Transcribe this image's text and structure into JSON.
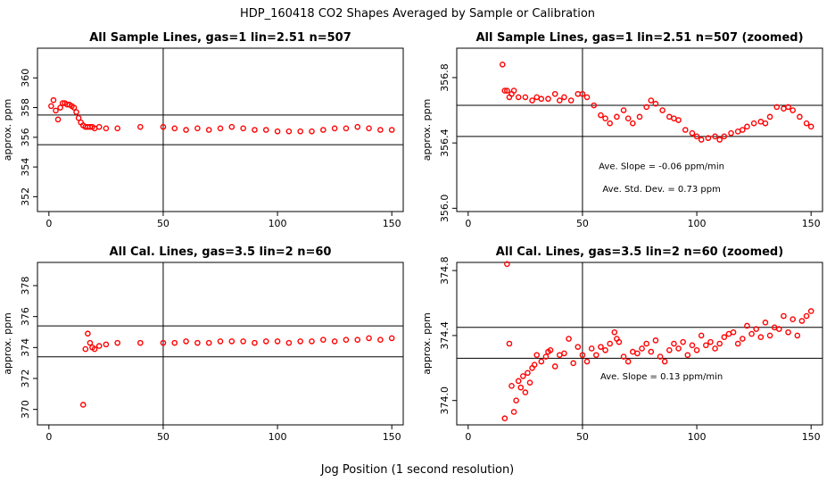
{
  "figure": {
    "title": "HDP_160418  CO2 Shapes Averaged by Sample or Calibration",
    "xlabel": "Jog Position (1 second resolution)",
    "point_color": "#ff0000"
  },
  "chart_data": [
    {
      "type": "scatter",
      "title": "All Sample Lines, gas=1 lin=2.51 n=507",
      "xlabel": "",
      "ylabel": "approx. ppm",
      "xlim": [
        -5,
        155
      ],
      "ylim": [
        351,
        362
      ],
      "xticks": [
        "0",
        "50",
        "100",
        "150"
      ],
      "yticks": [
        "352",
        "354",
        "356",
        "358",
        "360"
      ],
      "ytick_values": [
        352,
        354,
        356,
        358,
        360
      ],
      "vlines": [
        50
      ],
      "hlines": [
        355.5,
        357.5
      ],
      "annotations": [],
      "series": [
        {
          "name": "sample",
          "x": [
            1,
            2,
            3,
            4,
            5,
            6,
            7,
            8,
            9,
            10,
            11,
            12,
            13,
            14,
            15,
            16,
            17,
            18,
            19,
            20,
            22,
            25,
            30,
            40,
            50,
            55,
            60,
            65,
            70,
            75,
            80,
            85,
            90,
            95,
            100,
            105,
            110,
            115,
            120,
            125,
            130,
            135,
            140,
            145,
            150
          ],
          "y": [
            358.1,
            358.5,
            357.8,
            357.2,
            358.0,
            358.3,
            358.3,
            358.2,
            358.2,
            358.1,
            358.0,
            357.7,
            357.3,
            357.0,
            356.8,
            356.7,
            356.7,
            356.7,
            356.7,
            356.6,
            356.7,
            356.6,
            356.6,
            356.7,
            356.7,
            356.6,
            356.5,
            356.6,
            356.5,
            356.6,
            356.7,
            356.6,
            356.5,
            356.5,
            356.4,
            356.4,
            356.4,
            356.4,
            356.5,
            356.6,
            356.6,
            356.7,
            356.6,
            356.5,
            356.5
          ]
        }
      ]
    },
    {
      "type": "scatter",
      "title": "All Sample Lines, gas=1 lin=2.51 n=507 (zoomed)",
      "xlabel": "",
      "ylabel": "approx. ppm",
      "xlim": [
        -5,
        155
      ],
      "ylim": [
        355.98,
        356.98
      ],
      "xticks": [
        "0",
        "50",
        "100",
        "150"
      ],
      "yticks": [
        "356.0",
        "356.4",
        "356.8"
      ],
      "ytick_values": [
        356.0,
        356.4,
        356.8
      ],
      "vlines": [
        50
      ],
      "hlines": [
        356.44,
        356.63
      ],
      "annotations": [
        "Ave. Slope =  -0.06  ppm/min",
        "Ave. Std. Dev. =  0.73  ppm"
      ],
      "series": [
        {
          "name": "sample zoomed",
          "x": [
            15,
            16,
            17,
            18,
            19,
            20,
            22,
            25,
            28,
            30,
            32,
            35,
            38,
            40,
            42,
            45,
            48,
            50,
            52,
            55,
            58,
            60,
            62,
            65,
            68,
            70,
            72,
            75,
            78,
            80,
            82,
            85,
            88,
            90,
            92,
            95,
            98,
            100,
            102,
            105,
            108,
            110,
            112,
            115,
            118,
            120,
            122,
            125,
            128,
            130,
            132,
            135,
            138,
            140,
            142,
            145,
            148,
            150
          ],
          "y": [
            356.88,
            356.72,
            356.72,
            356.68,
            356.7,
            356.72,
            356.68,
            356.68,
            356.66,
            356.68,
            356.67,
            356.67,
            356.7,
            356.66,
            356.68,
            356.66,
            356.7,
            356.7,
            356.68,
            356.63,
            356.57,
            356.55,
            356.52,
            356.56,
            356.6,
            356.55,
            356.52,
            356.56,
            356.62,
            356.66,
            356.64,
            356.6,
            356.56,
            356.55,
            356.54,
            356.48,
            356.46,
            356.44,
            356.42,
            356.43,
            356.44,
            356.42,
            356.44,
            356.46,
            356.47,
            356.48,
            356.5,
            356.52,
            356.53,
            356.52,
            356.56,
            356.62,
            356.61,
            356.62,
            356.6,
            356.56,
            356.52,
            356.5
          ]
        }
      ]
    },
    {
      "type": "scatter",
      "title": "All Cal. Lines, gas=3.5 lin=2 n=60",
      "xlabel": "",
      "ylabel": "approx. ppm",
      "xlim": [
        -5,
        155
      ],
      "ylim": [
        369,
        379.5
      ],
      "xticks": [
        "0",
        "50",
        "100",
        "150"
      ],
      "yticks": [
        "370",
        "372",
        "374",
        "376",
        "378"
      ],
      "ytick_values": [
        370,
        372,
        374,
        376,
        378
      ],
      "vlines": [
        50
      ],
      "hlines": [
        373.4,
        375.4
      ],
      "annotations": [],
      "series": [
        {
          "name": "calibration",
          "x": [
            15,
            16,
            17,
            18,
            19,
            20,
            22,
            25,
            30,
            40,
            50,
            55,
            60,
            65,
            70,
            75,
            80,
            85,
            90,
            95,
            100,
            105,
            110,
            115,
            120,
            125,
            130,
            135,
            140,
            145,
            150
          ],
          "y": [
            370.3,
            373.9,
            374.9,
            374.3,
            374.0,
            373.9,
            374.1,
            374.2,
            374.3,
            374.3,
            374.3,
            374.3,
            374.4,
            374.3,
            374.3,
            374.4,
            374.4,
            374.4,
            374.3,
            374.4,
            374.4,
            374.3,
            374.4,
            374.4,
            374.5,
            374.4,
            374.5,
            374.5,
            374.6,
            374.5,
            374.6
          ]
        }
      ]
    },
    {
      "type": "scatter",
      "title": "All Cal. Lines, gas=3.5 lin=2 n=60 (zoomed)",
      "xlabel": "",
      "ylabel": "approx. ppm",
      "xlim": [
        -5,
        155
      ],
      "ylim": [
        373.85,
        374.85
      ],
      "xticks": [
        "0",
        "50",
        "100",
        "150"
      ],
      "yticks": [
        "374.0",
        "374.4",
        "374.8"
      ],
      "ytick_values": [
        374.0,
        374.4,
        374.8
      ],
      "vlines": [
        50
      ],
      "hlines": [
        374.26,
        374.45
      ],
      "annotations": [
        "Ave. Slope =  0.13  ppm/min"
      ],
      "series": [
        {
          "name": "cal zoomed",
          "x": [
            16,
            17,
            18,
            19,
            20,
            21,
            22,
            23,
            24,
            25,
            26,
            27,
            28,
            29,
            30,
            32,
            34,
            35,
            36,
            38,
            40,
            42,
            44,
            46,
            48,
            50,
            52,
            54,
            56,
            58,
            60,
            62,
            64,
            65,
            66,
            68,
            70,
            72,
            74,
            76,
            78,
            80,
            82,
            84,
            86,
            88,
            90,
            92,
            94,
            96,
            98,
            100,
            102,
            104,
            106,
            108,
            110,
            112,
            114,
            116,
            118,
            120,
            122,
            124,
            126,
            128,
            130,
            132,
            134,
            136,
            138,
            140,
            142,
            144,
            146,
            148,
            150
          ],
          "y": [
            373.89,
            374.84,
            374.35,
            374.09,
            373.93,
            374.0,
            374.12,
            374.08,
            374.15,
            374.05,
            374.17,
            374.11,
            374.2,
            374.22,
            374.28,
            374.24,
            374.27,
            374.3,
            374.31,
            374.21,
            374.28,
            374.29,
            374.38,
            374.23,
            374.33,
            374.28,
            374.24,
            374.32,
            374.28,
            374.33,
            374.31,
            374.35,
            374.42,
            374.38,
            374.36,
            374.27,
            374.24,
            374.3,
            374.29,
            374.32,
            374.35,
            374.3,
            374.37,
            374.27,
            374.24,
            374.31,
            374.35,
            374.32,
            374.36,
            374.28,
            374.34,
            374.31,
            374.4,
            374.34,
            374.36,
            374.32,
            374.35,
            374.39,
            374.41,
            374.42,
            374.35,
            374.38,
            374.46,
            374.41,
            374.44,
            374.39,
            374.48,
            374.4,
            374.45,
            374.44,
            374.52,
            374.42,
            374.5,
            374.4,
            374.49,
            374.52,
            374.55
          ]
        }
      ]
    }
  ]
}
